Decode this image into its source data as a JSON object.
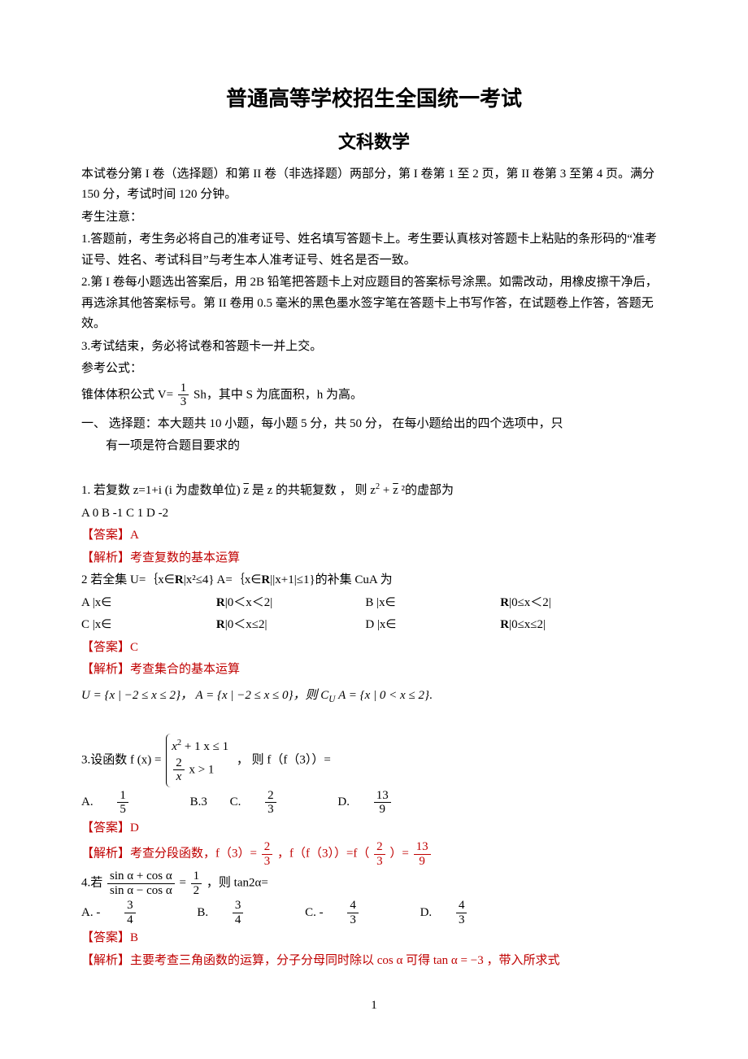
{
  "colors": {
    "text": "#000000",
    "answer": "#c00000",
    "background": "#ffffff"
  },
  "typography": {
    "body_font": "SimSun",
    "body_size_pt": 12,
    "title1_size_pt": 20,
    "title2_size_pt": 17,
    "line_height": 1.7
  },
  "title": "普通高等学校招生全国统一考试",
  "subtitle": "文科数学",
  "preamble": {
    "p1": "本试卷分第 I 卷（选择题）和第 II 卷（非选择题）两部分，第 I 卷第 1 至 2 页，第 II 卷第 3 至第 4 页。满分 150 分，考试时间 120 分钟。",
    "p2": "考生注意：",
    "p3": "1.答题前，考生务必将自己的准考证号、姓名填写答题卡上。考生要认真核对答题卡上粘贴的条形码的“准考证号、姓名、考试科目”与考生本人准考证号、姓名是否一致。",
    "p4": "2.第 I 卷每小题选出答案后，用 2B 铅笔把答题卡上对应题目的答案标号涂黑。如需改动，用橡皮擦干净后，再选涂其他答案标号。第 II 卷用 0.5 毫米的黑色墨水签字笔在答题卡上书写作答，在试题卷上作答，答题无效。",
    "p5": "3.考试结束，务必将试卷和答题卡一并上交。",
    "p6": "参考公式：",
    "cone_prefix": "锥体体积公式 V=",
    "cone_num": "1",
    "cone_den": "3",
    "cone_suffix": "Sh，其中 S 为底面积，h 为高。"
  },
  "section1_heading": "一、 选择题：本大题共 10 小题，每小题 5 分，共 50 分，   在每小题给出的四个选项中，只",
  "section1_heading2": "有一项是符合题目要求的",
  "q1": {
    "stem_a": "1. 若复数 z=1+i  (i 为虚数单位) ",
    "zbar": "z",
    "stem_b": " 是 z 的共轭复数 ，  则 z",
    "sq": "2",
    "plus": " + ",
    "zbar2": "z",
    "sq2": " ²的虚部为",
    "opts": "A   0   B -1   C    1      D   -2",
    "ans_label": "【答案】",
    "ans_val": "A",
    "analysis": "【解析】考查复数的基本运算"
  },
  "q2": {
    "stem_a": "2    若全集 U=｛x∈",
    "R": "R",
    "stem_b": "|x²≤4}     A=｛x∈",
    "stem_c": "||x+1|≤1}的补集 CuA 为",
    "optA": "A |x∈",
    "optA2": " |0＜x＜2|",
    "optB": "B    |x∈",
    "optB2": " |0≤x＜2|",
    "optC": "C |x∈",
    "optC2": " |0＜x≤2|",
    "optD": "D    |x∈",
    "optD2": " |0≤x≤2|",
    "ans_label": "【答案】",
    "ans_val": "C",
    "analysis": "【解析】考查集合的基本运算",
    "set_line": "U = {x | −2 ≤ x ≤ 2}，  A = {x | −2 ≤ x ≤ 0}，则",
    "set_line_c": "C",
    "set_line_u": "U",
    "set_line_a": "A = {x | 0 < x ≤ 2}",
    "dot": "."
  },
  "q3": {
    "stem_prefix": "3.设函数 f (x) = ",
    "row1_a": "x",
    "row1_sq": "2",
    "row1_b": " + 1    x ≤ 1",
    "row2_num": "2",
    "row2_den": "x",
    "row2_cond": "        x > 1",
    "stem_suffix": "，  则 f（f（3））=",
    "optA_lbl": "A.",
    "optA_num": "1",
    "optA_den": "5",
    "optB": "B.3",
    "optC_lbl": "C. ",
    "optC_num": "2",
    "optC_den": "3",
    "optD_lbl": "D. ",
    "optD_num": "13",
    "optD_den": "9",
    "ans_label": "【答案】",
    "ans_val": "D",
    "analysis_a": "【解析】考查分段函数，f（3）=",
    "an_num1": "2",
    "an_den1": "3",
    "analysis_b": "，f（f（3））=f（",
    "an_num2": "2",
    "an_den2": "3",
    "analysis_c": "）=",
    "an_num3": "13",
    "an_den3": "9"
  },
  "q4": {
    "stem_prefix": "4.若",
    "num_expr": "sin α + cos α",
    "den_expr": "sin α − cos α",
    "eq": " = ",
    "rhs_num": "1",
    "rhs_den": "2",
    "stem_suffix": "，则 tan2α=",
    "optA_lbl": "A. -",
    "optA_num": "3",
    "optA_den": "4",
    "optB_lbl": "B. ",
    "optB_num": "3",
    "optB_den": "4",
    "optC_lbl": "C. -",
    "optC_num": "4",
    "optC_den": "3",
    "optD_lbl": "D. ",
    "optD_num": "4",
    "optD_den": "3",
    "ans_label": "【答案】",
    "ans_val": "B",
    "analysis": "【解析】主要考查三角函数的运算，分子分母同时除以 cos α 可得 tan α = −3 ，带入所求式"
  },
  "page_number": "1"
}
